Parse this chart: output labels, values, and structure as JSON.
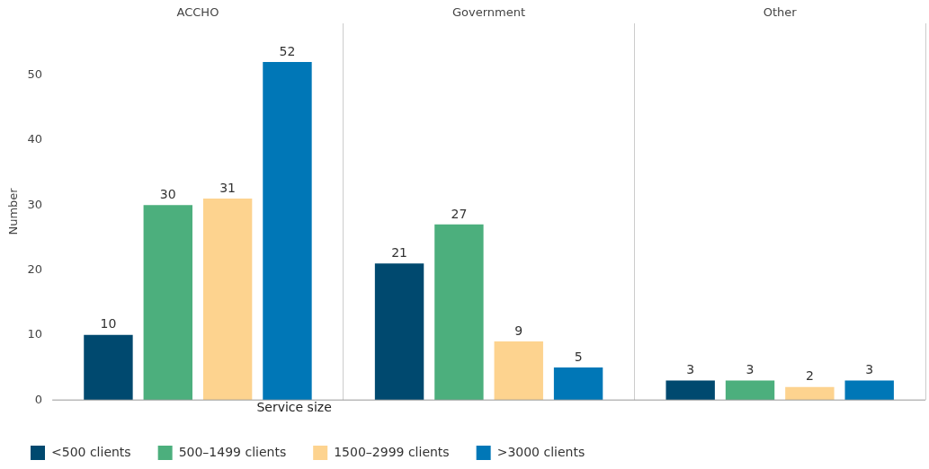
{
  "chart_data": {
    "type": "bar",
    "categories": [
      "ACCHO",
      "Government",
      "Other"
    ],
    "ylabel": "Number",
    "legend_title": "Service size",
    "ylim": [
      0,
      58
    ],
    "yticks": [
      0,
      10,
      20,
      30,
      40,
      50
    ],
    "grid": "x",
    "legend": "bottom left",
    "data_labels": true,
    "series": [
      {
        "name": "<500 clients",
        "color": "#00496f",
        "values": [
          10,
          21,
          3
        ]
      },
      {
        "name": "500–1499 clients",
        "color": "#4caf7d",
        "values": [
          30,
          27,
          3
        ]
      },
      {
        "name": "1500–2999 clients",
        "color": "#fdd38f",
        "values": [
          31,
          9,
          2
        ]
      },
      {
        "name": ">3000 clients",
        "color": "#0077b7",
        "values": [
          52,
          5,
          3
        ]
      }
    ]
  }
}
